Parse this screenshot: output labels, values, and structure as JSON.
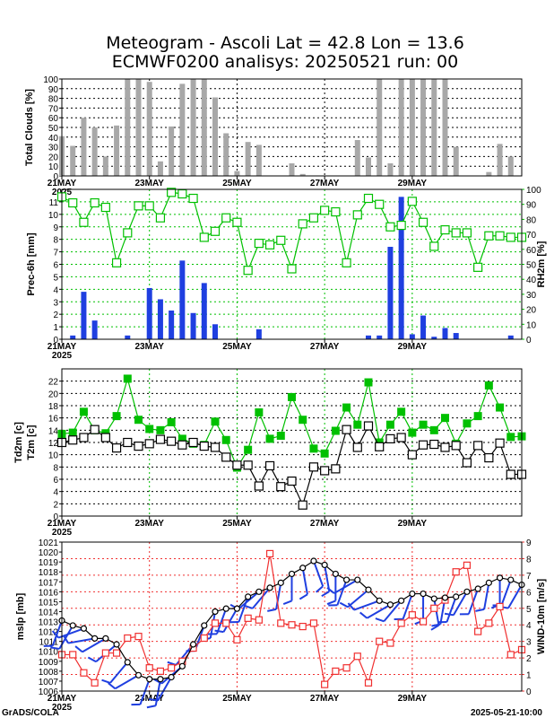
{
  "title": {
    "line1": "Meteogram - Ascoli Lat = 42.8 Lon = 13.6",
    "line2": "ECMWF0200 analisys: 20250521 run: 00"
  },
  "footer": {
    "left": "GrADS/COLA",
    "right": "2025-05-21-10:00"
  },
  "x_axis": {
    "range_days": [
      21,
      31.5
    ],
    "ticks": [
      {
        "day": 21,
        "label": "21MAY",
        "sub": "2025"
      },
      {
        "day": 23,
        "label": "23MAY",
        "sub": ""
      },
      {
        "day": 25,
        "label": "25MAY",
        "sub": ""
      },
      {
        "day": 27,
        "label": "27MAY",
        "sub": ""
      },
      {
        "day": 29,
        "label": "29MAY",
        "sub": ""
      }
    ]
  },
  "colors": {
    "green": "#00c000",
    "blue": "#1f3fe0",
    "red": "#f03030",
    "gray": "#a8a8a8",
    "black": "#000000"
  },
  "chart_data": [
    {
      "type": "bar",
      "ylabel": "Total Clouds [%]",
      "ylim": [
        0,
        100
      ],
      "yticks": [
        0,
        10,
        20,
        30,
        40,
        50,
        60,
        70,
        80,
        90,
        100
      ],
      "x": [
        21.0,
        21.25,
        21.5,
        21.75,
        22.0,
        22.25,
        22.5,
        22.75,
        23.0,
        23.25,
        23.5,
        23.75,
        24.0,
        24.25,
        24.5,
        24.75,
        25.0,
        25.25,
        25.5,
        25.75,
        26.0,
        26.25,
        26.5,
        26.75,
        27.0,
        27.25,
        27.5,
        27.75,
        28.0,
        28.25,
        28.5,
        28.75,
        29.0,
        29.25,
        29.5,
        29.75,
        30.0,
        30.25,
        30.5,
        30.75,
        31.0,
        31.25
      ],
      "values": [
        41,
        31,
        60,
        50,
        20,
        52,
        100,
        100,
        97,
        15,
        51,
        95,
        100,
        100,
        81,
        44,
        5,
        35,
        32,
        0,
        0,
        13,
        2,
        0,
        0,
        0,
        0,
        37,
        19,
        100,
        13,
        100,
        100,
        100,
        100,
        100,
        30,
        0,
        0,
        4,
        33,
        20
      ]
    },
    {
      "type": "bar+line",
      "ylabel": "Prec-6h [mm]",
      "ylabel2": "RH2m [%]",
      "ylim": [
        0,
        12
      ],
      "ylim2": [
        0,
        100
      ],
      "yticks": [
        0,
        1,
        2,
        3,
        4,
        5,
        6,
        7,
        8,
        9,
        10,
        11
      ],
      "yticks2": [
        0,
        10,
        20,
        30,
        40,
        50,
        60,
        70,
        80,
        90,
        100
      ],
      "series": [
        {
          "name": "Prec-6h",
          "x": [
            21.25,
            21.5,
            21.75,
            22.0,
            22.25,
            22.5,
            22.75,
            23.0,
            23.25,
            23.5,
            23.75,
            24.0,
            24.25,
            24.5,
            24.75,
            25.0,
            25.25,
            25.5,
            25.75,
            26.0,
            26.25,
            26.5,
            26.75,
            27.0,
            27.25,
            27.5,
            27.75,
            28.0,
            28.25,
            28.5,
            28.75,
            29.0,
            29.25,
            29.5,
            29.75,
            30.0,
            30.25,
            30.5,
            30.75,
            31.0,
            31.25
          ],
          "values": [
            0.3,
            3.8,
            1.5,
            0,
            0,
            0.3,
            0,
            4.1,
            3.2,
            2.3,
            6.3,
            2.1,
            4.5,
            1.2,
            0,
            0,
            0,
            0.8,
            0,
            0,
            0,
            0,
            0,
            0,
            0,
            0,
            0,
            0.3,
            0.3,
            7.4,
            11.4,
            0.4,
            1.9,
            0.2,
            0.9,
            0.5,
            0,
            0,
            0,
            0,
            0.3
          ]
        },
        {
          "name": "RH2m",
          "x": [
            21.0,
            21.25,
            21.5,
            21.75,
            22.0,
            22.25,
            22.5,
            22.75,
            23.0,
            23.25,
            23.5,
            23.75,
            24.0,
            24.25,
            24.5,
            24.75,
            25.0,
            25.25,
            25.5,
            25.75,
            26.0,
            26.25,
            26.5,
            26.75,
            27.0,
            27.25,
            27.5,
            27.75,
            28.0,
            28.25,
            28.5,
            28.75,
            29.0,
            29.25,
            29.5,
            29.75,
            30.0,
            30.25,
            30.5,
            30.75,
            31.0,
            31.25,
            31.5
          ],
          "values": [
            95,
            91,
            78,
            91,
            88,
            51,
            71,
            89,
            89,
            81,
            98,
            97,
            94,
            68,
            72,
            81,
            78,
            46,
            64,
            63,
            66,
            47,
            77,
            81,
            86,
            85,
            51,
            83,
            94,
            90,
            75,
            76,
            92,
            78,
            62,
            73,
            71,
            71,
            48,
            69,
            69,
            68,
            68
          ]
        }
      ]
    },
    {
      "type": "line",
      "ylabel": "Td2m [c]",
      "ylabel2": "T2m [c]",
      "ylim": [
        0,
        24
      ],
      "yticks": [
        0,
        2,
        4,
        6,
        8,
        10,
        12,
        14,
        16,
        18,
        20,
        22
      ],
      "series": [
        {
          "name": "T2m",
          "x": [
            21.0,
            21.25,
            21.5,
            21.75,
            22.0,
            22.25,
            22.5,
            22.75,
            23.0,
            23.25,
            23.5,
            23.75,
            24.0,
            24.25,
            24.5,
            24.75,
            25.0,
            25.25,
            25.5,
            25.75,
            26.0,
            26.25,
            26.5,
            26.75,
            27.0,
            27.25,
            27.5,
            27.75,
            28.0,
            28.25,
            28.5,
            28.75,
            29.0,
            29.25,
            29.5,
            29.75,
            30.0,
            30.25,
            30.5,
            30.75,
            31.0,
            31.25,
            31.5
          ],
          "values": [
            13.4,
            13.6,
            17.0,
            14.0,
            13.5,
            16.3,
            22.4,
            15.7,
            14.2,
            14.0,
            15.3,
            12.6,
            11.8,
            11.6,
            15.4,
            12.4,
            7.9,
            10.8,
            16.9,
            12.6,
            13.1,
            19.4,
            15.7,
            11.0,
            10.2,
            13.9,
            17.7,
            14.9,
            21.8,
            12.0,
            14.9,
            17.0,
            13.6,
            14.9,
            14.0,
            16.0,
            11.8,
            15.1,
            16.3,
            21.3,
            17.7,
            12.9,
            13.0
          ]
        },
        {
          "name": "Td2m",
          "x": [
            21.0,
            21.25,
            21.5,
            21.75,
            22.0,
            22.25,
            22.5,
            22.75,
            23.0,
            23.25,
            23.5,
            23.75,
            24.0,
            24.25,
            24.5,
            24.75,
            25.0,
            25.25,
            25.5,
            25.75,
            26.0,
            26.25,
            26.5,
            26.75,
            27.0,
            27.25,
            27.5,
            27.75,
            28.0,
            28.25,
            28.5,
            28.75,
            29.0,
            29.25,
            29.5,
            29.75,
            30.0,
            30.25,
            30.5,
            30.75,
            31.0,
            31.25,
            31.5
          ],
          "values": [
            12.0,
            12.4,
            12.8,
            14.1,
            12.8,
            11.1,
            12.0,
            11.4,
            11.8,
            12.5,
            12.2,
            11.6,
            12.0,
            11.4,
            11.2,
            9.6,
            8.3,
            8.3,
            4.9,
            8.2,
            4.8,
            5.7,
            1.8,
            8.0,
            7.4,
            7.7,
            14.1,
            11.2,
            14.7,
            11.3,
            12.6,
            12.8,
            10.0,
            11.6,
            11.7,
            11.2,
            11.5,
            8.7,
            11.5,
            9.5,
            11.9,
            6.8,
            6.8
          ]
        }
      ]
    },
    {
      "type": "line",
      "ylabel": "mslp [mb]",
      "ylabel2": "WIND-10m [m/s]",
      "ylim": [
        1006,
        1021
      ],
      "ylim2": [
        0,
        9
      ],
      "yticks": [
        1006,
        1007,
        1008,
        1009,
        1010,
        1011,
        1012,
        1013,
        1014,
        1015,
        1016,
        1017,
        1018,
        1019,
        1020,
        1021
      ],
      "yticks2": [
        0,
        1,
        2,
        3,
        4,
        5,
        6,
        7,
        8,
        9
      ],
      "series": [
        {
          "name": "mslp",
          "x": [
            21.0,
            21.25,
            21.5,
            21.75,
            22.0,
            22.25,
            22.5,
            22.75,
            23.0,
            23.25,
            23.5,
            23.75,
            24.0,
            24.25,
            24.5,
            24.75,
            25.0,
            25.25,
            25.5,
            25.75,
            26.0,
            26.25,
            26.5,
            26.75,
            27.0,
            27.25,
            27.5,
            27.75,
            28.0,
            28.25,
            28.5,
            28.75,
            29.0,
            29.25,
            29.5,
            29.75,
            30.0,
            30.25,
            30.5,
            30.75,
            31.0,
            31.25,
            31.5
          ],
          "values": [
            1013.1,
            1012.6,
            1012.3,
            1011.3,
            1011.3,
            1010.7,
            1008.9,
            1007.6,
            1007.2,
            1007.2,
            1007.4,
            1008.5,
            1010.7,
            1012.6,
            1014.0,
            1014.3,
            1014.3,
            1015.5,
            1016.0,
            1016.4,
            1016.9,
            1017.8,
            1018.4,
            1019.1,
            1018.7,
            1017.8,
            1017.2,
            1017.2,
            1016.2,
            1015.1,
            1014.7,
            1015.1,
            1015.8,
            1015.8,
            1015.3,
            1015.4,
            1015.5,
            1016.0,
            1016.3,
            1016.9,
            1017.4,
            1017.2,
            1016.7
          ]
        },
        {
          "name": "WIND-10m",
          "x": [
            21.0,
            21.25,
            21.5,
            21.75,
            22.0,
            22.25,
            22.5,
            22.75,
            23.0,
            23.25,
            23.5,
            23.75,
            24.0,
            24.25,
            24.5,
            24.75,
            25.0,
            25.25,
            25.5,
            25.75,
            26.0,
            26.25,
            26.5,
            26.75,
            27.0,
            27.25,
            27.5,
            27.75,
            28.0,
            28.25,
            28.5,
            28.75,
            29.0,
            29.25,
            29.5,
            29.75,
            30.0,
            30.25,
            30.5,
            30.75,
            31.0,
            31.25,
            31.5
          ],
          "values": [
            2.2,
            2.2,
            1.1,
            0.5,
            2.3,
            2.3,
            3.2,
            3.3,
            1.4,
            1.2,
            1.4,
            1.8,
            2.6,
            3.2,
            4.1,
            4.1,
            3.1,
            4.4,
            4.3,
            8.3,
            4.1,
            4.0,
            3.9,
            4.1,
            0.4,
            1.2,
            1.4,
            2.1,
            0.5,
            3.0,
            2.9,
            4.1,
            4.6,
            4.2,
            5.0,
            5.5,
            7.2,
            7.6,
            3.6,
            4.1,
            5.1,
            2.2,
            2.5
          ]
        },
        {
          "name": "wind-barbs",
          "x": [
            21.0,
            21.25,
            21.5,
            21.75,
            22.0,
            22.25,
            22.5,
            22.75,
            23.0,
            23.25,
            23.5,
            23.75,
            24.0,
            24.25,
            24.5,
            24.75,
            25.0,
            25.25,
            25.5,
            25.75,
            26.0,
            26.25,
            26.5,
            26.75,
            27.0,
            27.25,
            27.5,
            27.75,
            28.0,
            28.25,
            28.5,
            28.75,
            29.0,
            29.25,
            29.5,
            29.75,
            30.0,
            30.25,
            30.5,
            30.75,
            31.0,
            31.25,
            31.5
          ],
          "direction_deg": [
            200,
            210,
            250,
            260,
            240,
            230,
            220,
            240,
            200,
            190,
            210,
            230,
            220,
            200,
            190,
            200,
            210,
            200,
            230,
            220,
            190,
            180,
            170,
            160,
            170,
            180,
            200,
            240,
            230,
            250,
            240,
            220,
            200,
            180,
            170,
            190,
            200,
            210,
            200,
            190,
            180,
            200,
            210
          ]
        }
      ]
    }
  ]
}
